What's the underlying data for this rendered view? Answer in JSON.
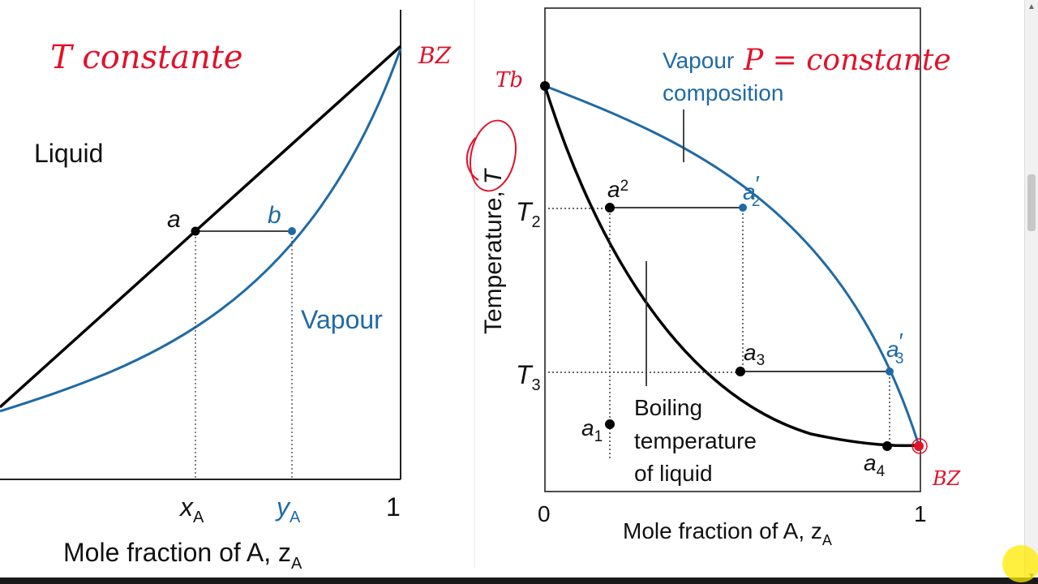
{
  "left_panel": {
    "handwritten_title": "T constante",
    "handwritten_right": "BZ",
    "region_liquid": "Liquid",
    "region_vapour": "Vapour",
    "point_a": "a",
    "point_b": "b",
    "tick_xA": "x",
    "tick_xA_sub": "A",
    "tick_yA": "y",
    "tick_yA_sub": "A",
    "tick_one": "1",
    "xaxis_label": "Mole fraction of A, z",
    "xaxis_sub": "A"
  },
  "right_panel": {
    "vapour_label_1": "Vapour",
    "vapour_label_2": "composition",
    "handwritten_p": "P = constante",
    "handwritten_tb": "Tb",
    "handwritten_bz": "BZ",
    "y_axis_label": "Temperature,",
    "y_axis_T": "T",
    "T2": "T",
    "T2_sub": "2",
    "T3": "T",
    "T3_sub": "3",
    "a1": "a",
    "a1_sub": "1",
    "a2": "a",
    "a2_sub": "2",
    "a2p": "a",
    "a2p_sub": "2",
    "a3": "a",
    "a3_sub": "3",
    "a3p": "a",
    "a3p_sub": "3",
    "a4": "a",
    "a4_sub": "4",
    "boiling_1": "Boiling",
    "boiling_2": "temperature",
    "boiling_3": "of liquid",
    "tick_zero": "0",
    "tick_one": "1",
    "xaxis_label": "Mole fraction of A, z",
    "xaxis_sub": "A"
  },
  "colors": {
    "liquid_curve": "#000000",
    "vapour_curve": "#1f6aa5",
    "annotation": "#e0122a"
  }
}
